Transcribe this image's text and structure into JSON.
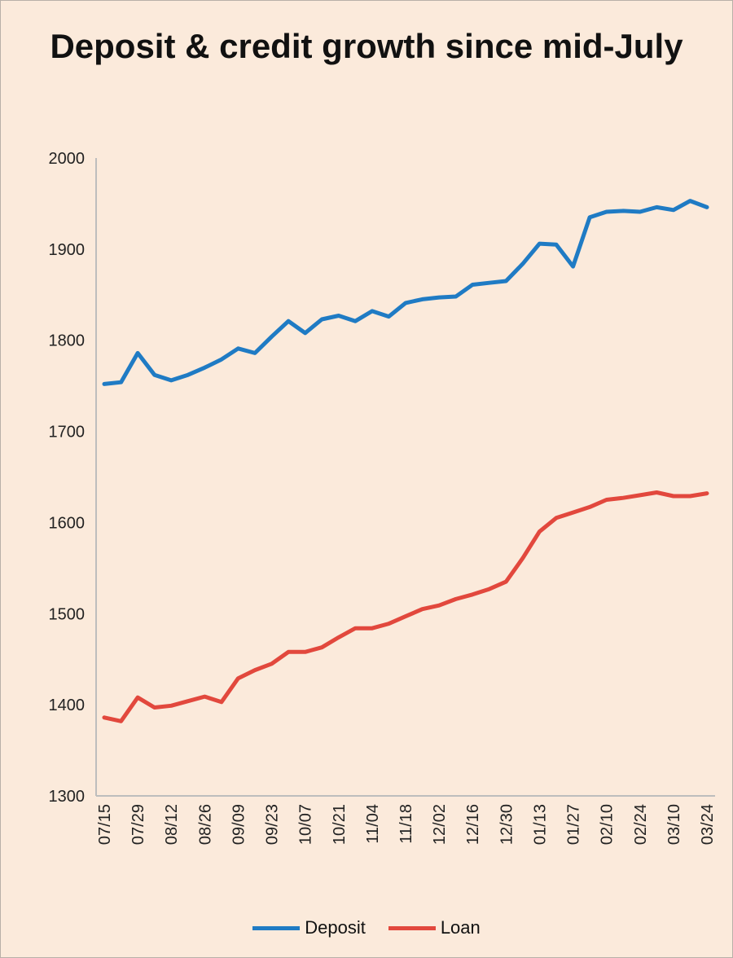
{
  "chart_data": {
    "type": "line",
    "title": "Deposit & credit growth since mid-July",
    "xlabel": "",
    "ylabel": "",
    "ylim": [
      1300,
      2000
    ],
    "yticks": [
      "1300",
      "1400",
      "1500",
      "1600",
      "1700",
      "1800",
      "1900",
      "2000"
    ],
    "x_tick_labels": [
      "07/15",
      "07/29",
      "08/12",
      "08/26",
      "09/09",
      "09/23",
      "10/07",
      "10/21",
      "11/04",
      "11/18",
      "12/02",
      "12/16",
      "12/30",
      "01/13",
      "01/27",
      "02/10",
      "02/24",
      "03/10",
      "03/24"
    ],
    "grid": false,
    "legend_position": "bottom",
    "series": [
      {
        "name": "Deposit",
        "color": "#1f7bc4",
        "values": [
          1752,
          1754,
          1786,
          1762,
          1756,
          1762,
          1770,
          1779,
          1791,
          1786,
          1804,
          1821,
          1808,
          1823,
          1827,
          1821,
          1832,
          1826,
          1841,
          1845,
          1847,
          1848,
          1861,
          1863,
          1865,
          1884,
          1906,
          1905,
          1881,
          1935,
          1941,
          1942,
          1941,
          1946,
          1943,
          1953,
          1946
        ]
      },
      {
        "name": "Loan",
        "color": "#e2483d",
        "values": [
          1386,
          1382,
          1408,
          1397,
          1399,
          1404,
          1409,
          1403,
          1429,
          1438,
          1445,
          1458,
          1458,
          1463,
          1474,
          1484,
          1484,
          1489,
          1497,
          1505,
          1509,
          1516,
          1521,
          1527,
          1535,
          1561,
          1590,
          1605,
          1611,
          1617,
          1625,
          1627,
          1630,
          1633,
          1629,
          1629,
          1632
        ]
      }
    ]
  }
}
